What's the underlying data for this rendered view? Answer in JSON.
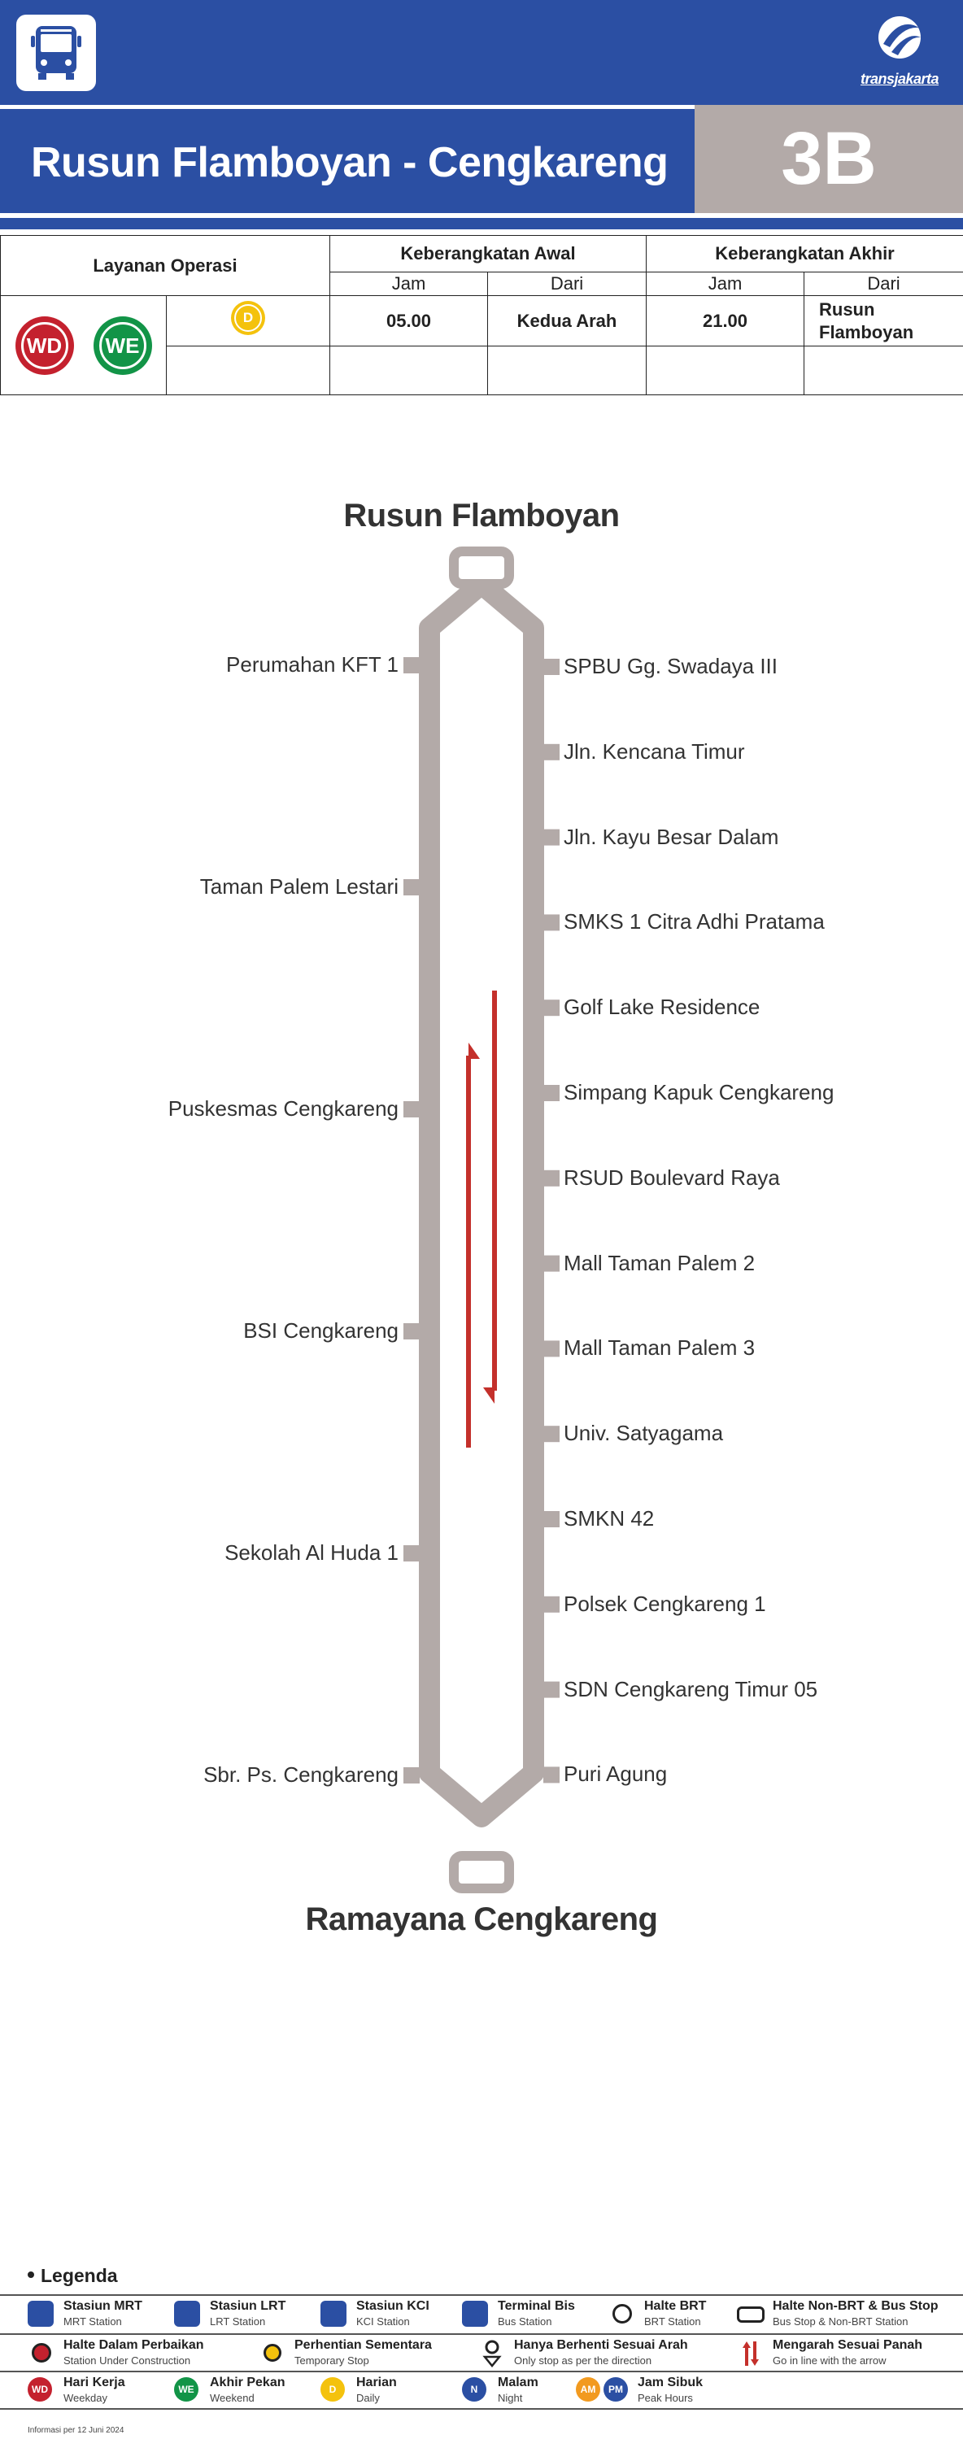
{
  "header": {
    "bus_icon": "bus-icon",
    "brand_name": "transjakarta",
    "brand_icon": "transjakarta-logo-icon"
  },
  "route": {
    "title": "Rusun Flamboyan - Cengkareng",
    "code": "3B"
  },
  "schedule": {
    "service_header": "Layanan Operasi",
    "first_departure_header": "Keberangkatan Awal",
    "last_departure_header": "Keberangkatan Akhir",
    "time_label": "Jam",
    "from_label": "Dari",
    "badge_weekday": "WD",
    "badge_weekend": "WE",
    "badge_daily": "D",
    "first_time": "05.00",
    "first_from": "Kedua Arah",
    "last_time": "21.00",
    "last_from": "Rusun Flamboyan"
  },
  "map": {
    "top_terminal": "Rusun Flamboyan",
    "bottom_terminal": "Ramayana Cengkareng",
    "line_color": "#b3aaa8",
    "arrow_color": "#c4302b",
    "left_stops": [
      "Perumahan KFT 1",
      "Taman Palem Lestari",
      "Puskesmas Cengkareng",
      "BSI Cengkareng",
      "Sekolah Al Huda 1",
      "Sbr. Ps. Cengkareng"
    ],
    "right_stops": [
      "SPBU Gg. Swadaya III",
      "Jln. Kencana Timur",
      "Jln. Kayu Besar Dalam",
      "SMKS 1 Citra Adhi Pratama",
      "Golf Lake Residence",
      "Simpang Kapuk Cengkareng",
      "RSUD Boulevard Raya",
      "Mall Taman Palem 2",
      "Mall Taman Palem 3",
      "Univ. Satyagama",
      "SMKN 42",
      "Polsek Cengkareng 1",
      "SDN Cengkareng Timur 05",
      "Puri Agung"
    ]
  },
  "legend": {
    "title": "Legenda",
    "items": [
      {
        "t1": "Stasiun MRT",
        "t2": "MRT Station",
        "icon": "mrt-station-icon"
      },
      {
        "t1": "Stasiun LRT",
        "t2": "LRT Station",
        "icon": "lrt-station-icon"
      },
      {
        "t1": "Stasiun KCI",
        "t2": "KCI Station",
        "icon": "kci-station-icon"
      },
      {
        "t1": "Terminal Bis",
        "t2": "Bus Station",
        "icon": "bus-station-icon"
      },
      {
        "t1": "Halte BRT",
        "t2": "BRT Station",
        "icon": "brt-stop-icon"
      },
      {
        "t1": "Halte Non-BRT & Bus Stop",
        "t2": "Bus Stop & Non-BRT Station",
        "icon": "non-brt-stop-icon"
      },
      {
        "t1": "Halte Dalam Perbaikan",
        "t2": "Station Under Construction",
        "icon": "under-construction-icon"
      },
      {
        "t1": "Perhentian Sementara",
        "t2": "Temporary Stop",
        "icon": "temporary-stop-icon"
      },
      {
        "t1": "Hanya Berhenti Sesuai Arah",
        "t2": "Only stop as per the direction",
        "icon": "direction-only-stop-icon"
      },
      {
        "t1": "Mengarah Sesuai Panah",
        "t2": "Go in line with the arrow",
        "icon": "direction-arrow-icon"
      },
      {
        "t1": "Hari Kerja",
        "t2": "Weekday",
        "icon": "weekday-icon",
        "badge": "WD"
      },
      {
        "t1": "Akhir Pekan",
        "t2": "Weekend",
        "icon": "weekend-icon",
        "badge": "WE"
      },
      {
        "t1": "Harian",
        "t2": "Daily",
        "icon": "daily-icon",
        "badge": "D"
      },
      {
        "t1": "Malam",
        "t2": "Night",
        "icon": "night-icon",
        "badge": "N"
      },
      {
        "t1": "Jam Sibuk",
        "t2": "Peak Hours",
        "icon": "peak-hours-icon",
        "badge_am": "AM",
        "badge_pm": "PM"
      }
    ]
  },
  "footnote": "Informasi per 12 Juni 2024",
  "colors": {
    "primary_blue": "#2b4fa3",
    "route_grey": "#b3aaa8",
    "weekday_red": "#c4212e",
    "weekend_green": "#129447",
    "daily_yellow": "#f4c20d",
    "night_blue": "#2b4fa3",
    "peak_orange": "#f29a1f"
  }
}
